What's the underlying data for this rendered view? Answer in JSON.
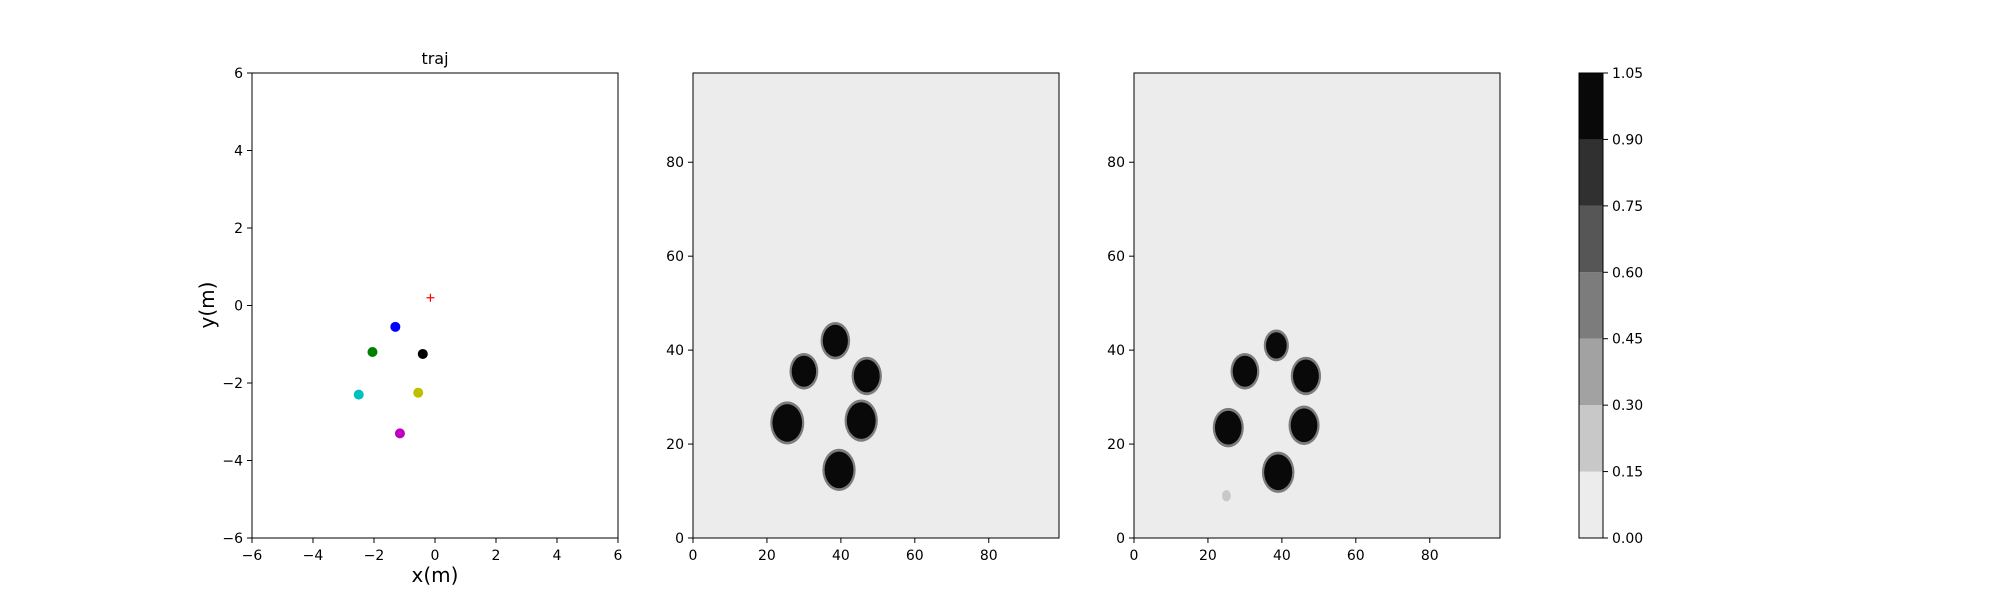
{
  "chart_data": [
    {
      "type": "scatter",
      "title": "traj",
      "xlabel": "x(m)",
      "ylabel": "y(m)",
      "xlim": [
        -6,
        6
      ],
      "ylim": [
        -6,
        6
      ],
      "xticks": [
        "−6",
        "−4",
        "−2",
        "0",
        "2",
        "4",
        "6"
      ],
      "yticks": [
        "−6",
        "−4",
        "−2",
        "0",
        "2",
        "4",
        "6"
      ],
      "grid": false,
      "points": [
        {
          "x": -1.3,
          "y": -0.55,
          "color": "#0000ff",
          "marker": "circle"
        },
        {
          "x": -2.05,
          "y": -1.2,
          "color": "#007f00",
          "marker": "circle"
        },
        {
          "x": -0.4,
          "y": -1.25,
          "color": "#000000",
          "marker": "circle"
        },
        {
          "x": -2.5,
          "y": -2.3,
          "color": "#00bfbf",
          "marker": "circle"
        },
        {
          "x": -0.55,
          "y": -2.25,
          "color": "#bfbf00",
          "marker": "circle"
        },
        {
          "x": -1.15,
          "y": -3.3,
          "color": "#bf00bf",
          "marker": "circle"
        }
      ],
      "target": {
        "x": -0.15,
        "y": 0.2,
        "color": "#ff0000",
        "marker": "plus"
      }
    },
    {
      "type": "heatmap",
      "title": "",
      "xlim": [
        0,
        99
      ],
      "ylim": [
        0,
        99
      ],
      "xticks": [
        "0",
        "20",
        "40",
        "60",
        "80"
      ],
      "yticks": [
        "0",
        "20",
        "40",
        "60",
        "80"
      ],
      "background_value": 0.05,
      "blobs": [
        {
          "cx": 38.5,
          "cy": 42,
          "r": 3.4,
          "value": 1.0
        },
        {
          "cx": 30,
          "cy": 35.5,
          "r": 3.3,
          "value": 1.0
        },
        {
          "cx": 47,
          "cy": 34.5,
          "r": 3.5,
          "value": 1.0
        },
        {
          "cx": 25.5,
          "cy": 24.5,
          "r": 4.0,
          "value": 1.0
        },
        {
          "cx": 45.5,
          "cy": 25,
          "r": 3.9,
          "value": 1.0
        },
        {
          "cx": 39.5,
          "cy": 14.5,
          "r": 3.9,
          "value": 1.0
        }
      ]
    },
    {
      "type": "heatmap",
      "title": "",
      "xlim": [
        0,
        99
      ],
      "ylim": [
        0,
        99
      ],
      "xticks": [
        "0",
        "20",
        "40",
        "60",
        "80"
      ],
      "yticks": [
        "0",
        "20",
        "40",
        "60",
        "80"
      ],
      "background_value": 0.05,
      "blobs": [
        {
          "cx": 38.5,
          "cy": 41,
          "r": 2.8,
          "value": 1.0
        },
        {
          "cx": 30,
          "cy": 35.5,
          "r": 3.3,
          "value": 1.0
        },
        {
          "cx": 46.5,
          "cy": 34.5,
          "r": 3.5,
          "value": 1.0
        },
        {
          "cx": 25.5,
          "cy": 23.5,
          "r": 3.6,
          "value": 1.0
        },
        {
          "cx": 46,
          "cy": 24,
          "r": 3.6,
          "value": 1.0
        },
        {
          "cx": 39,
          "cy": 14,
          "r": 3.8,
          "value": 1.0
        },
        {
          "cx": 25,
          "cy": 9,
          "r": 1.2,
          "value": 0.25
        }
      ]
    },
    {
      "type": "colorbar",
      "levels": [
        0.0,
        0.15,
        0.3,
        0.45,
        0.6,
        0.75,
        0.9,
        1.05
      ],
      "tick_labels": [
        "0.00",
        "0.15",
        "0.30",
        "0.45",
        "0.60",
        "0.75",
        "0.90",
        "1.05"
      ],
      "colors": [
        "#ececec",
        "#c8c8c8",
        "#a2a2a2",
        "#7c7c7c",
        "#565656",
        "#303030",
        "#090909"
      ]
    }
  ]
}
